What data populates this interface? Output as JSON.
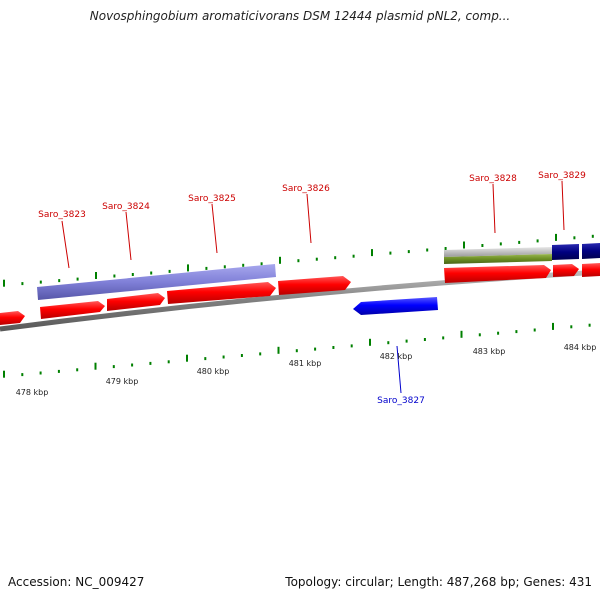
{
  "header": {
    "title": "Novosphingobium aromaticivorans DSM 12444 plasmid pNL2, comp..."
  },
  "footer": {
    "accession": "Accession: NC_009427",
    "summary": "Topology: circular; Length: 487,268 bp; Genes: 431"
  },
  "scale": {
    "ticks": [
      "478 kbp",
      "479 kbp",
      "480 kbp",
      "481 kbp",
      "482 kbp",
      "483 kbp",
      "484 kbp"
    ]
  },
  "genes": {
    "forward": [
      "Saro_3823",
      "Saro_3824",
      "Saro_3825",
      "Saro_3826",
      "Saro_3828",
      "Saro_3829"
    ],
    "reverse": [
      "Saro_3827"
    ]
  },
  "colors": {
    "forward_gene": "#ff0000",
    "reverse_gene": "#0000ff",
    "feature_purple": "#8080d8",
    "feature_navy": "#000080",
    "feature_green": "#6b8e23",
    "feature_grey": "#c0c0c0",
    "backbone": "#808080",
    "tick": "#008000",
    "forward_label": "#cc0000",
    "reverse_label": "#0000cc"
  }
}
